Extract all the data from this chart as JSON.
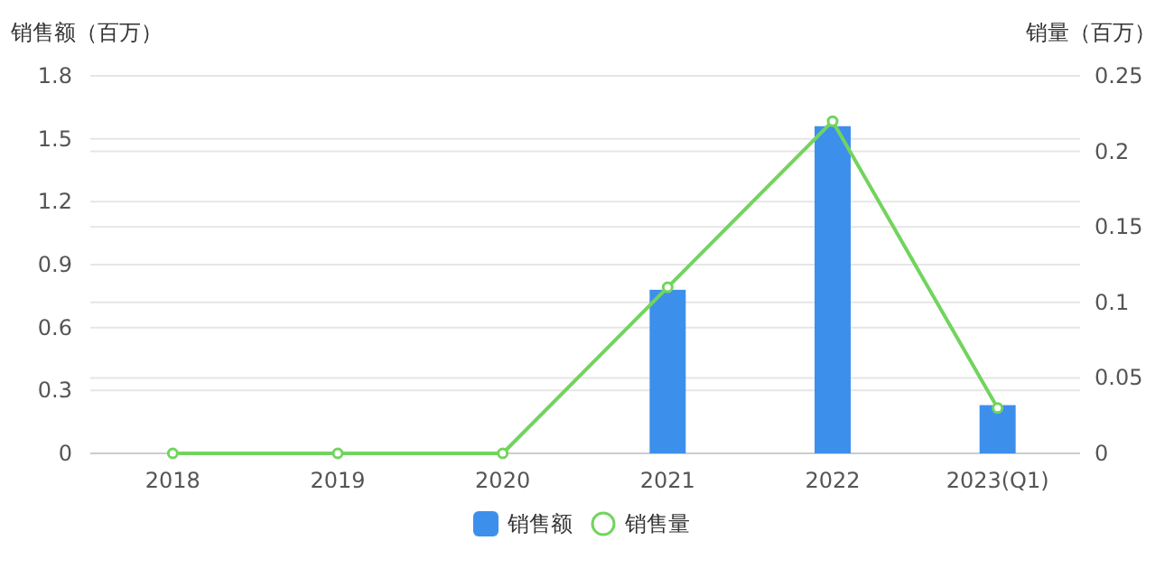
{
  "chart_data": {
    "type": "bar",
    "ylabel": "销售额（百万）",
    "y2label": "销量（百万）",
    "categories": [
      "2018",
      "2019",
      "2020",
      "2021",
      "2022",
      "2023(Q1)"
    ],
    "series": [
      {
        "name": "销售额",
        "color": "#3d8fec",
        "values": [
          0,
          0,
          0,
          0.78,
          1.56,
          0.23
        ]
      },
      {
        "name": "销售量",
        "type": "line",
        "axis": "y2",
        "color": "#72d45e",
        "marker": "circle",
        "values": [
          0,
          0,
          0,
          0.11,
          0.22,
          0.03
        ]
      }
    ],
    "ylim": [
      0,
      1.8
    ],
    "yticks": [
      0,
      0.3,
      0.6,
      0.9,
      1.2,
      1.5,
      1.8
    ],
    "y2lim": [
      0,
      0.25
    ],
    "y2ticks": [
      0,
      0.05,
      0.1,
      0.15,
      0.2,
      0.25
    ],
    "grid": true,
    "legend": "bottom"
  }
}
